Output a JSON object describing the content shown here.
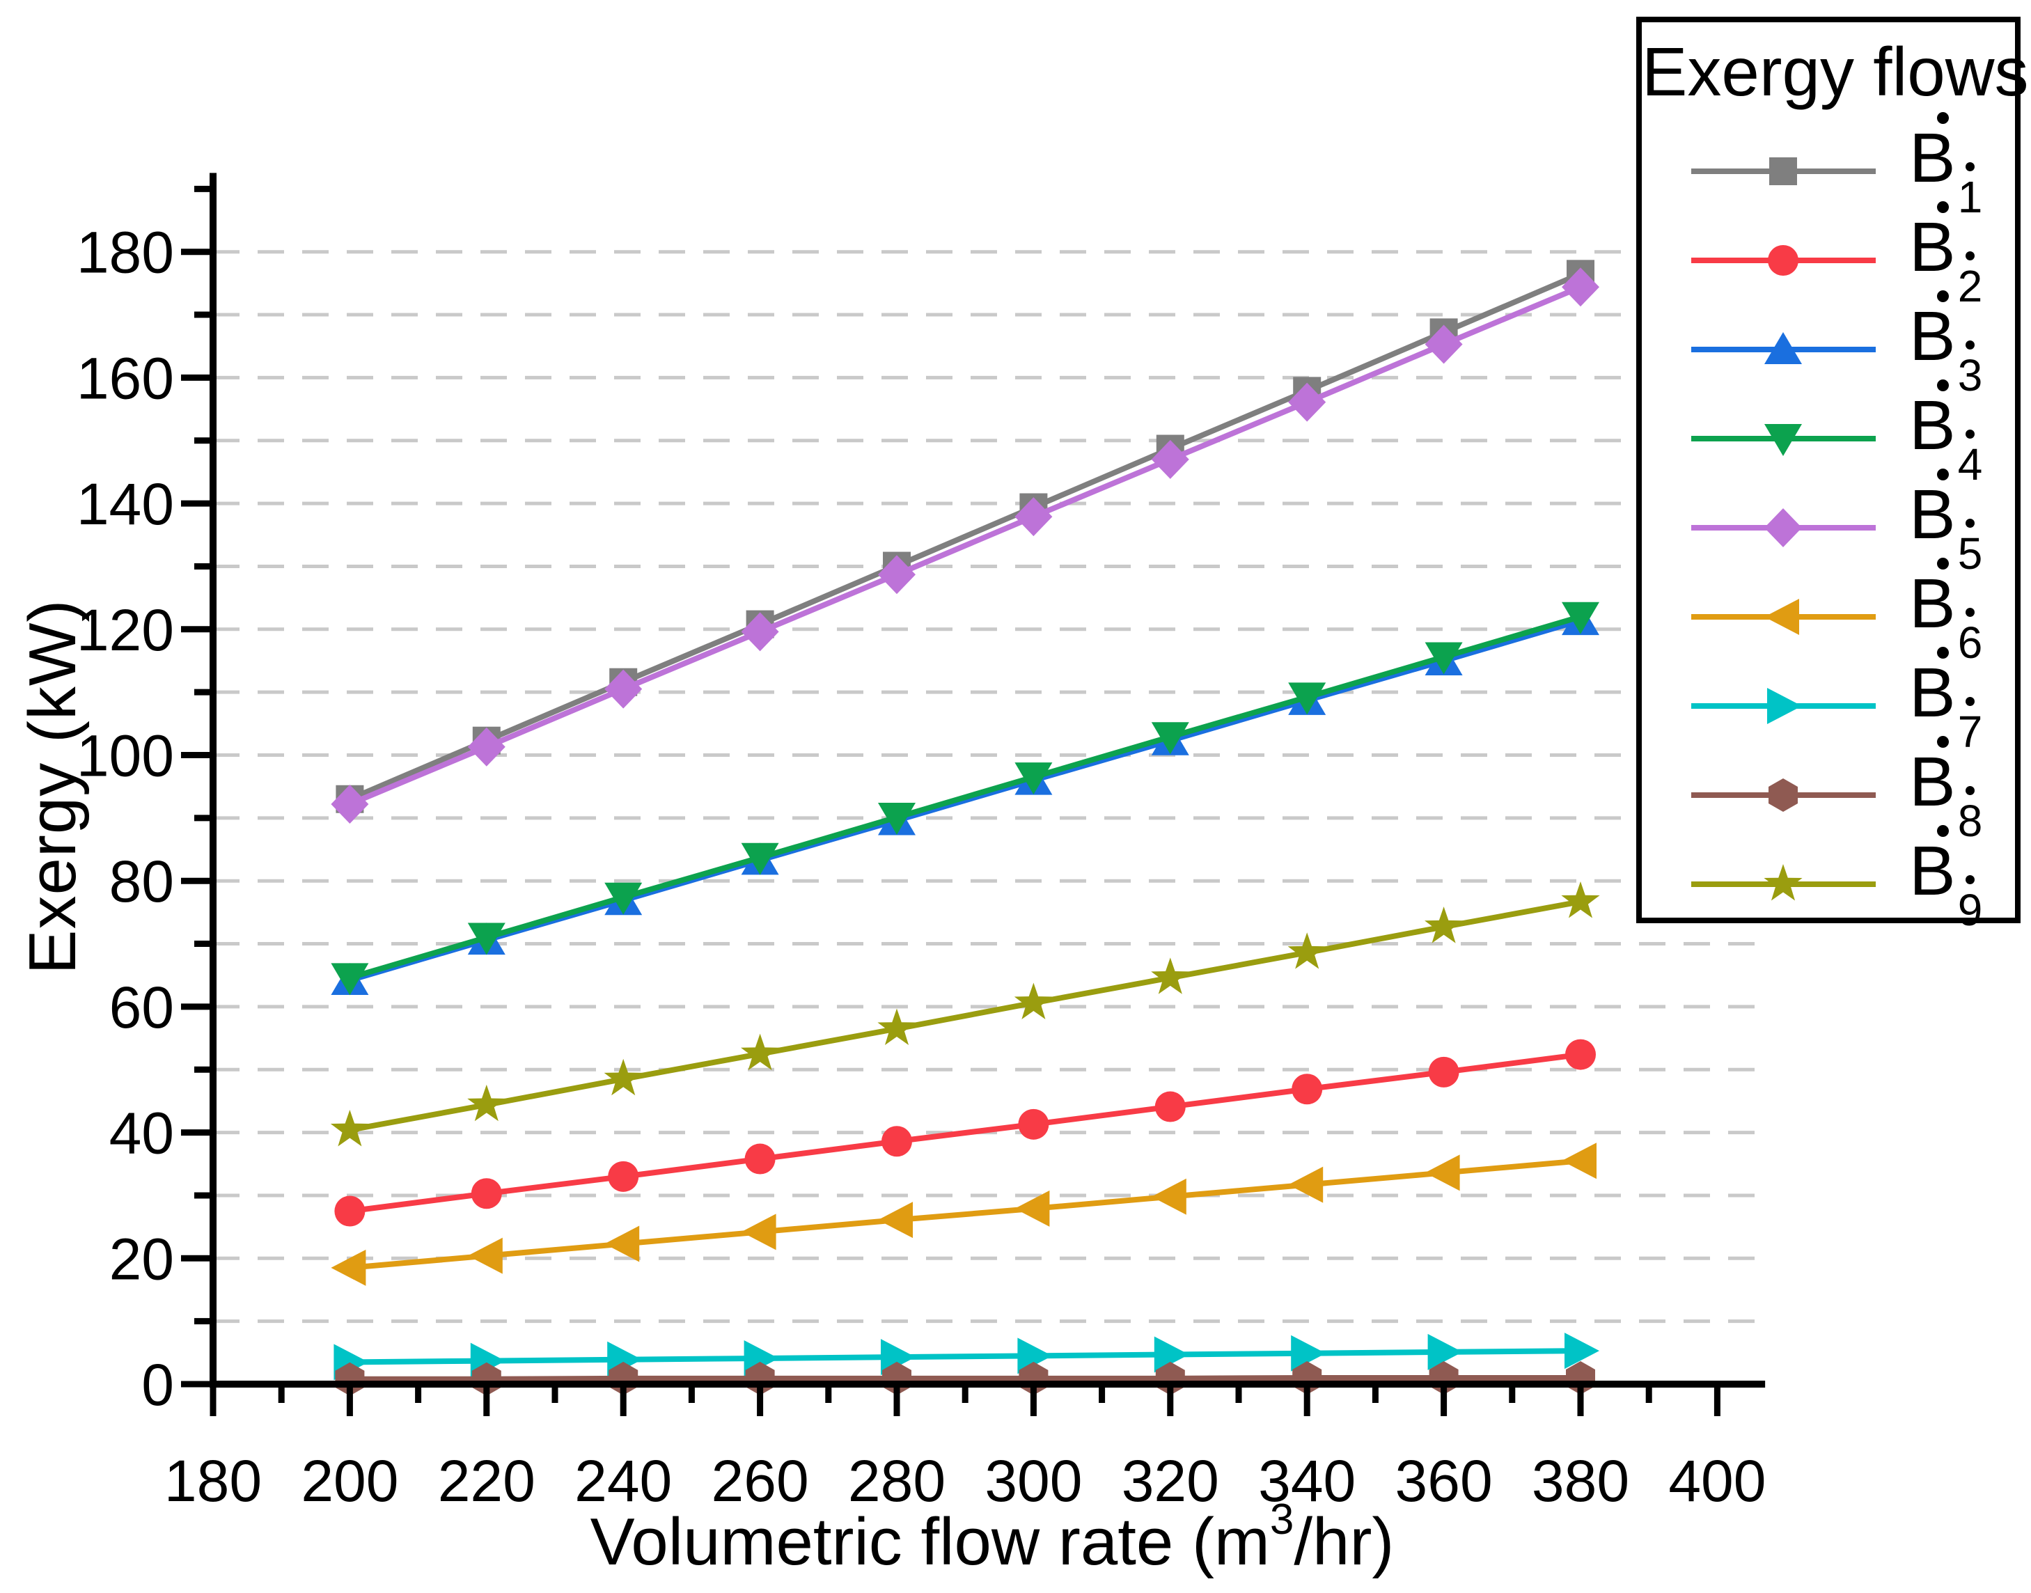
{
  "chart_data": {
    "type": "line",
    "title": "",
    "xlabel": "Volumetric flow rate (m³/hr)",
    "xlabel_parts": [
      {
        "text": "Volumetric flow rate (m",
        "sup": false
      },
      {
        "text": "3",
        "sup": true
      },
      {
        "text": "/hr)",
        "sup": false
      }
    ],
    "ylabel": "Exergy (kW)",
    "xlim": [
      180,
      407
    ],
    "ylim": [
      0,
      191
    ],
    "x_major_ticks": [
      180,
      200,
      220,
      240,
      260,
      280,
      300,
      320,
      340,
      360,
      380,
      400
    ],
    "x_minor_ticks": [
      190,
      210,
      230,
      250,
      270,
      290,
      310,
      330,
      350,
      370,
      390
    ],
    "y_major_ticks": [
      0,
      20,
      40,
      60,
      80,
      100,
      120,
      140,
      160,
      180
    ],
    "y_minor_ticks": [
      10,
      30,
      50,
      70,
      90,
      110,
      130,
      150,
      170,
      190
    ],
    "grid": {
      "horizontal_dashed_every": 10,
      "vertical": false,
      "color": "#c9c9c9"
    },
    "legend": {
      "title": "Exergy flows",
      "position": "top-right"
    },
    "x": [
      200,
      220,
      240,
      260,
      280,
      300,
      320,
      340,
      360,
      380
    ],
    "series": [
      {
        "name": "B1",
        "label_base": "B",
        "label_overdot": true,
        "label_sub": "1",
        "label_sub_overdot": true,
        "marker": "square",
        "color": "#7f7f7f",
        "values": [
          93.0,
          102.3,
          111.6,
          120.8,
          130.1,
          139.4,
          148.7,
          157.9,
          167.2,
          176.5
        ]
      },
      {
        "name": "B2",
        "label_base": "B",
        "label_overdot": true,
        "label_sub": "2",
        "label_sub_overdot": true,
        "marker": "circle",
        "color": "#f83b46",
        "values": [
          27.5,
          30.3,
          33.0,
          35.8,
          38.6,
          41.3,
          44.1,
          46.9,
          49.6,
          52.4
        ]
      },
      {
        "name": "B3",
        "label_base": "B",
        "label_overdot": true,
        "label_sub": "3",
        "label_sub_overdot": true,
        "marker": "triangle-up",
        "color": "#1a6fdf",
        "values": [
          64.2,
          70.6,
          76.9,
          83.3,
          89.6,
          96.0,
          102.3,
          108.7,
          115.0,
          121.4
        ]
      },
      {
        "name": "B4",
        "label_base": "B",
        "label_overdot": true,
        "label_sub": "4",
        "label_sub_overdot": true,
        "marker": "triangle-down",
        "color": "#0ca24e",
        "values": [
          64.6,
          71.0,
          77.4,
          83.7,
          90.1,
          96.5,
          102.9,
          109.2,
          115.6,
          122.0
        ]
      },
      {
        "name": "B5",
        "label_base": "B",
        "label_overdot": true,
        "label_sub": "5",
        "label_sub_overdot": true,
        "marker": "diamond",
        "color": "#bd73d8",
        "values": [
          92.2,
          101.3,
          110.5,
          119.6,
          128.7,
          137.9,
          147.0,
          156.1,
          165.3,
          174.4
        ]
      },
      {
        "name": "B6",
        "label_base": "B",
        "label_overdot": true,
        "label_sub": "6",
        "label_sub_overdot": true,
        "marker": "triangle-left",
        "color": "#e09c12",
        "values": [
          18.5,
          20.4,
          22.3,
          24.2,
          26.1,
          27.9,
          29.8,
          31.7,
          33.6,
          35.5
        ]
      },
      {
        "name": "B7",
        "label_base": "B",
        "label_overdot": true,
        "label_sub": "7",
        "label_sub_overdot": true,
        "marker": "triangle-right",
        "color": "#00c3c6",
        "values": [
          3.5,
          3.7,
          3.9,
          4.1,
          4.3,
          4.5,
          4.7,
          4.9,
          5.1,
          5.3
        ]
      },
      {
        "name": "B8",
        "label_base": "B",
        "label_overdot": true,
        "label_sub": "8",
        "label_sub_overdot": true,
        "marker": "hexagon",
        "color": "#8f5a52",
        "values": [
          0.8,
          0.8,
          0.9,
          0.9,
          0.9,
          0.9,
          0.9,
          1.0,
          1.0,
          1.0
        ]
      },
      {
        "name": "B9",
        "label_base": "B",
        "label_overdot": true,
        "label_sub": "9",
        "label_sub_overdot": true,
        "marker": "star",
        "color": "#9a9d0f",
        "values": [
          40.4,
          44.4,
          48.5,
          52.5,
          56.5,
          60.6,
          64.6,
          68.6,
          72.7,
          76.7
        ]
      }
    ]
  }
}
